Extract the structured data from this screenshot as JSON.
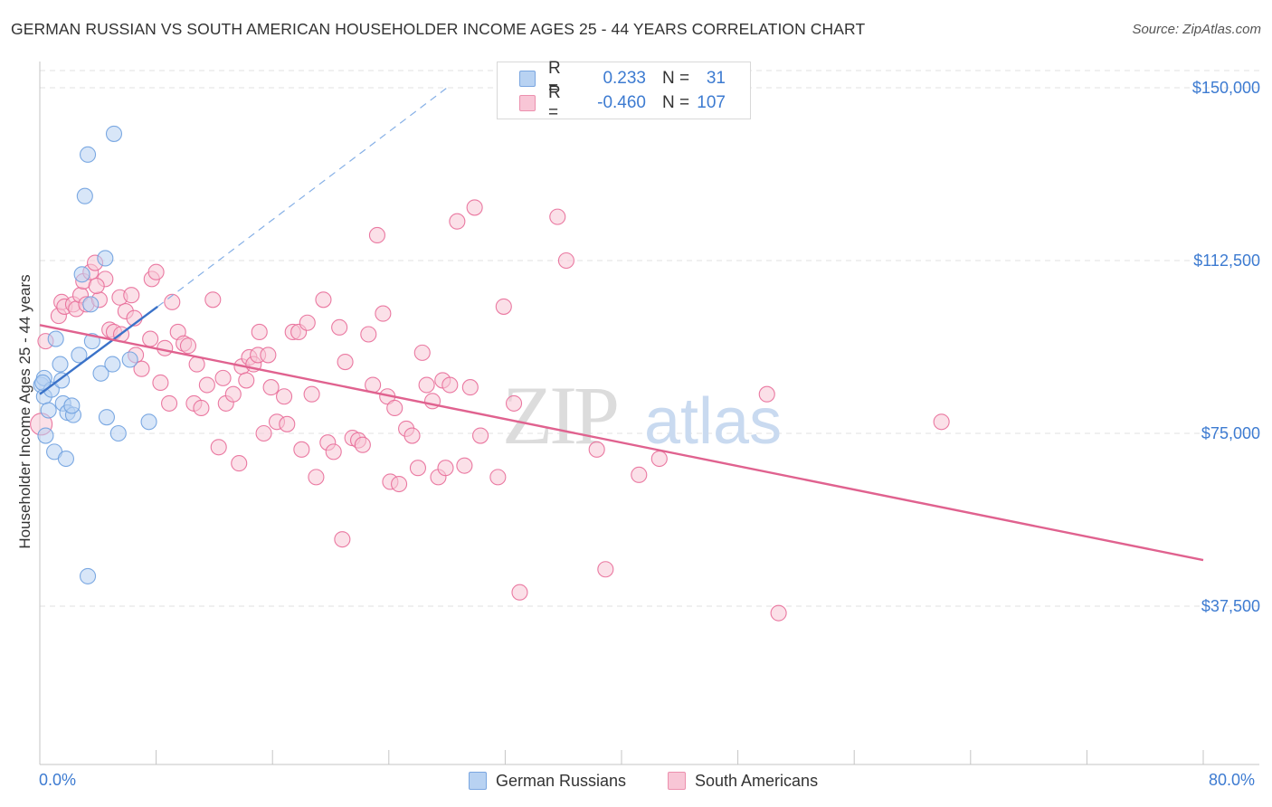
{
  "title": "GERMAN RUSSIAN VS SOUTH AMERICAN HOUSEHOLDER INCOME AGES 25 - 44 YEARS CORRELATION CHART",
  "source": "Source: ZipAtlas.com",
  "watermark": {
    "zip": "ZIP",
    "atlas": "atlas"
  },
  "legend": {
    "r_label": "R =",
    "n_label": "N =",
    "rows": [
      {
        "r": "0.233",
        "n": "31",
        "fill": "#b8d2f2",
        "stroke": "#7aa6e0"
      },
      {
        "r": "-0.460",
        "n": "107",
        "fill": "#f8c6d6",
        "stroke": "#ec90ae"
      }
    ]
  },
  "chart_data": {
    "type": "scatter",
    "title": "GERMAN RUSSIAN VS SOUTH AMERICAN HOUSEHOLDER INCOME AGES 25 - 44 YEARS CORRELATION CHART",
    "xlabel": "",
    "ylabel": "Householder Income Ages 25 - 44 years",
    "xlim": [
      0,
      80
    ],
    "ylim": [
      0,
      160000
    ],
    "x_tick_labels": [
      "0.0%",
      "80.0%"
    ],
    "y_ticks": [
      37500,
      75000,
      112500,
      150000
    ],
    "y_tick_labels": [
      "$37,500",
      "$75,000",
      "$112,500",
      "$150,000"
    ],
    "grid": true,
    "legend_position": "top-center",
    "series": [
      {
        "name": "German Russians",
        "color": "#6ea0df",
        "fill": "#b8d2f2",
        "trend": {
          "x": [
            0.0,
            8.1
          ],
          "y": [
            83500,
            102500
          ],
          "dashed_extension_to": [
            28.0,
            150000
          ]
        },
        "points": [
          [
            0.1,
            85.5
          ],
          [
            0.3,
            87.0
          ],
          [
            0.3,
            83.0
          ],
          [
            0.4,
            74.5
          ],
          [
            0.6,
            80.0
          ],
          [
            0.8,
            84.5
          ],
          [
            1.0,
            71.0
          ],
          [
            1.1,
            95.5
          ],
          [
            1.4,
            90.0
          ],
          [
            1.5,
            86.5
          ],
          [
            1.6,
            81.5
          ],
          [
            1.8,
            69.5
          ],
          [
            1.9,
            79.5
          ],
          [
            2.3,
            79.0
          ],
          [
            2.2,
            81.0
          ],
          [
            2.7,
            92.0
          ],
          [
            2.9,
            109.5
          ],
          [
            3.3,
            135.5
          ],
          [
            3.1,
            126.5
          ],
          [
            3.3,
            44.0
          ],
          [
            3.5,
            103.0
          ],
          [
            3.6,
            95.0
          ],
          [
            4.2,
            88.0
          ],
          [
            4.5,
            113.0
          ],
          [
            4.6,
            78.5
          ],
          [
            5.0,
            90.0
          ],
          [
            5.1,
            140.0
          ],
          [
            5.4,
            75.0
          ],
          [
            6.2,
            91.0
          ],
          [
            7.5,
            77.5
          ],
          [
            0.2,
            86.0
          ]
        ]
      },
      {
        "name": "South Americans",
        "color": "#e86b98",
        "fill": "#f8c6d6",
        "trend": {
          "x": [
            0.0,
            80.0
          ],
          "y": [
            98500,
            47500
          ]
        },
        "points": [
          [
            0.1,
            77.0
          ],
          [
            0.4,
            95.0
          ],
          [
            1.3,
            100.5
          ],
          [
            1.5,
            103.5
          ],
          [
            1.7,
            102.5
          ],
          [
            2.3,
            103.0
          ],
          [
            2.5,
            102.0
          ],
          [
            2.8,
            105.0
          ],
          [
            3.0,
            108.0
          ],
          [
            3.2,
            103.0
          ],
          [
            3.5,
            110.0
          ],
          [
            3.8,
            112.0
          ],
          [
            4.1,
            104.0
          ],
          [
            4.5,
            108.5
          ],
          [
            4.8,
            97.5
          ],
          [
            5.1,
            97.0
          ],
          [
            5.5,
            104.5
          ],
          [
            5.6,
            96.5
          ],
          [
            5.9,
            101.5
          ],
          [
            6.3,
            105.0
          ],
          [
            6.5,
            100.0
          ],
          [
            6.6,
            92.0
          ],
          [
            7.0,
            89.0
          ],
          [
            7.6,
            95.5
          ],
          [
            7.7,
            108.5
          ],
          [
            8.0,
            110.0
          ],
          [
            8.3,
            86.0
          ],
          [
            8.6,
            93.5
          ],
          [
            8.9,
            81.5
          ],
          [
            9.1,
            103.5
          ],
          [
            9.5,
            97.0
          ],
          [
            9.9,
            94.5
          ],
          [
            10.2,
            94.0
          ],
          [
            10.6,
            81.5
          ],
          [
            10.8,
            90.0
          ],
          [
            11.1,
            80.5
          ],
          [
            11.5,
            85.5
          ],
          [
            11.9,
            104.0
          ],
          [
            12.3,
            72.0
          ],
          [
            12.6,
            87.0
          ],
          [
            12.8,
            81.5
          ],
          [
            13.3,
            83.5
          ],
          [
            13.7,
            68.5
          ],
          [
            13.9,
            89.5
          ],
          [
            14.2,
            86.5
          ],
          [
            14.4,
            91.5
          ],
          [
            14.7,
            90.0
          ],
          [
            15.0,
            92.0
          ],
          [
            15.1,
            97.0
          ],
          [
            15.4,
            75.0
          ],
          [
            15.7,
            92.0
          ],
          [
            15.9,
            85.0
          ],
          [
            16.3,
            77.5
          ],
          [
            16.8,
            83.0
          ],
          [
            17.0,
            77.0
          ],
          [
            17.4,
            97.0
          ],
          [
            17.8,
            97.0
          ],
          [
            18.0,
            71.5
          ],
          [
            18.4,
            99.0
          ],
          [
            18.7,
            83.5
          ],
          [
            19.0,
            65.5
          ],
          [
            19.5,
            104.0
          ],
          [
            19.8,
            73.0
          ],
          [
            20.2,
            71.0
          ],
          [
            20.6,
            98.0
          ],
          [
            20.8,
            52.0
          ],
          [
            21.0,
            90.5
          ],
          [
            21.5,
            74.0
          ],
          [
            21.9,
            73.5
          ],
          [
            22.2,
            72.5
          ],
          [
            22.6,
            96.5
          ],
          [
            22.9,
            85.5
          ],
          [
            23.2,
            118.0
          ],
          [
            23.6,
            101.0
          ],
          [
            23.9,
            83.0
          ],
          [
            24.1,
            64.5
          ],
          [
            24.4,
            80.5
          ],
          [
            24.7,
            64.0
          ],
          [
            25.2,
            76.0
          ],
          [
            25.6,
            74.5
          ],
          [
            26.0,
            67.5
          ],
          [
            26.3,
            92.5
          ],
          [
            26.6,
            85.5
          ],
          [
            27.0,
            82.0
          ],
          [
            27.4,
            65.5
          ],
          [
            27.7,
            86.5
          ],
          [
            27.9,
            67.5
          ],
          [
            28.2,
            85.5
          ],
          [
            28.7,
            121.0
          ],
          [
            29.2,
            68.0
          ],
          [
            29.6,
            85.0
          ],
          [
            29.9,
            124.0
          ],
          [
            30.3,
            74.5
          ],
          [
            31.5,
            65.5
          ],
          [
            31.9,
            102.5
          ],
          [
            32.6,
            81.5
          ],
          [
            33.0,
            40.5
          ],
          [
            35.6,
            122.0
          ],
          [
            36.2,
            112.5
          ],
          [
            38.3,
            71.5
          ],
          [
            38.9,
            45.5
          ],
          [
            41.2,
            66.0
          ],
          [
            42.6,
            69.5
          ],
          [
            50.0,
            83.5
          ],
          [
            50.8,
            36.0
          ],
          [
            62.0,
            77.5
          ],
          [
            3.9,
            107.0
          ]
        ]
      }
    ]
  },
  "bottom_legend": [
    "German Russians",
    "South Americans"
  ]
}
